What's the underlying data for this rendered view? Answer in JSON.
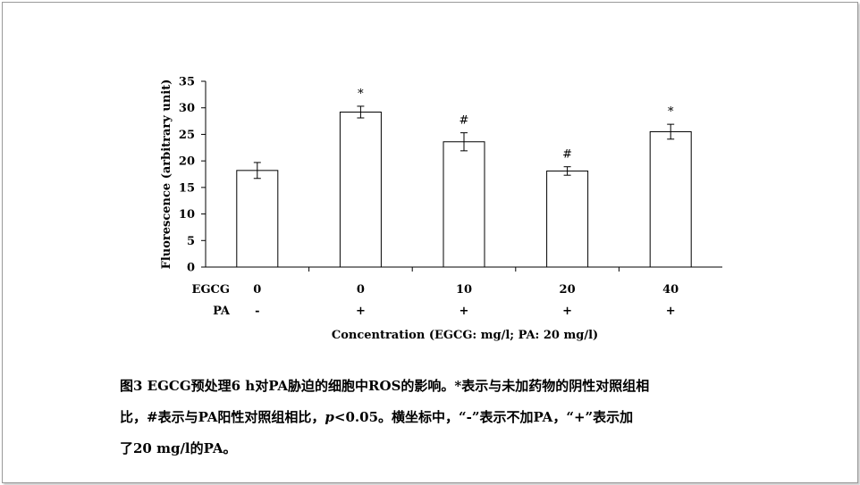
{
  "chart_data": {
    "type": "bar",
    "categories": [
      "0",
      "0",
      "10",
      "20",
      "40"
    ],
    "values": [
      18.2,
      29.2,
      23.6,
      18.1,
      25.5
    ],
    "errors": [
      1.5,
      1.1,
      1.7,
      0.8,
      1.4
    ],
    "significance": [
      "",
      "*",
      "#",
      "#",
      "*"
    ],
    "row_labels": {
      "egcg": "EGCG",
      "pa": "PA"
    },
    "egcg_values": [
      "0",
      "0",
      "10",
      "20",
      "40"
    ],
    "pa_values": [
      "-",
      "+",
      "+",
      "+",
      "+"
    ],
    "ylabel": "Fluorescence (arbitrary unit)",
    "xlabel": "Concentration (EGCG: mg/l; PA: 20 mg/l)",
    "ylim": [
      0,
      35
    ],
    "yticks": [
      0,
      5,
      10,
      15,
      20,
      25,
      30,
      35
    ],
    "grid": false,
    "bar_color": "#ffffff",
    "line_color": "#000000"
  },
  "caption": {
    "line1": "图3 EGCG预处理6 h对PA胁迫的细胞中ROS的影响。*表示与未加药物的阴性对照组相",
    "line2a": "比，#表示与PA阳性对照组相比，",
    "line2_p": "p",
    "line2b": "<0.05。横坐标中，“-”表示不加PA，“+”表示加",
    "line3": "了20 mg/l的PA。"
  }
}
